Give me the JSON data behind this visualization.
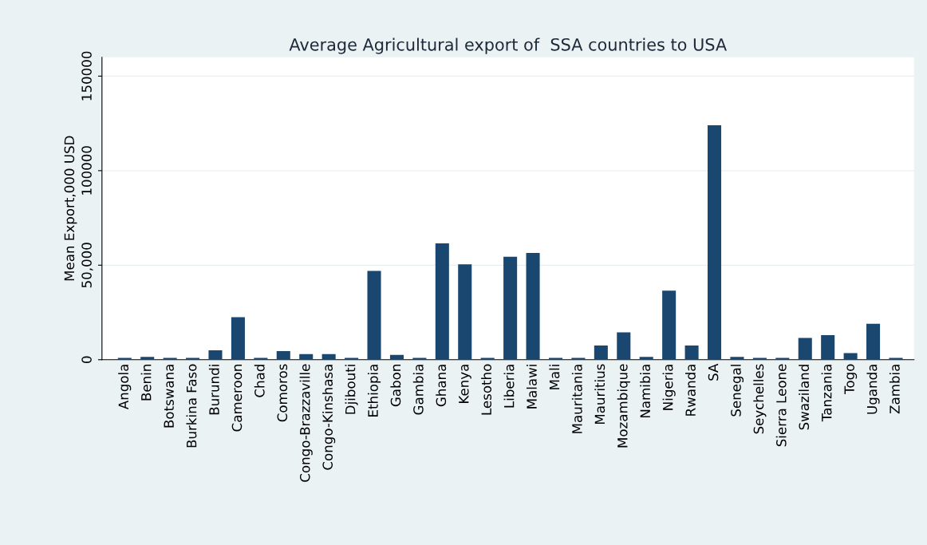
{
  "chart_data": {
    "type": "bar",
    "title": "Average Agricultural export of  SSA countries to USA",
    "ylabel": "Mean Export,000 USD",
    "categories": [
      "Angola",
      "Benin",
      "Botswana",
      "Burkina Faso",
      "Burundi",
      "Cameroon",
      "Chad",
      "Comoros",
      "Congo-Brazzaville",
      "Congo-Kinshasa",
      "Djibouti",
      "Ethiopia",
      "Gabon",
      "Gambia",
      "Ghana",
      "Kenya",
      "Lesotho",
      "Liberia",
      "Malawi",
      "Mali",
      "Mauritania",
      "Mauritius",
      "Mozambique",
      "Namibia",
      "Nigeria",
      "Rwanda",
      "SA",
      "Senegal",
      "Seychelles",
      "Sierra Leone",
      "Swaziland",
      "Tanzania",
      "Togo",
      "Uganda",
      "Zambia"
    ],
    "values": [
      1000,
      1500,
      1000,
      1000,
      5000,
      22500,
      1000,
      4500,
      3000,
      3000,
      1000,
      47000,
      2500,
      1000,
      61500,
      50500,
      1000,
      54500,
      56500,
      1000,
      1000,
      7500,
      14500,
      1500,
      36500,
      7500,
      124000,
      1500,
      1000,
      1000,
      11500,
      13000,
      3500,
      19000,
      1000
    ],
    "color": "#1a476f",
    "ylim": [
      0,
      160000
    ],
    "yticks": [
      0,
      {
        "value": 50000,
        "label": "50,000"
      },
      100000,
      150000
    ],
    "grid": "y"
  }
}
